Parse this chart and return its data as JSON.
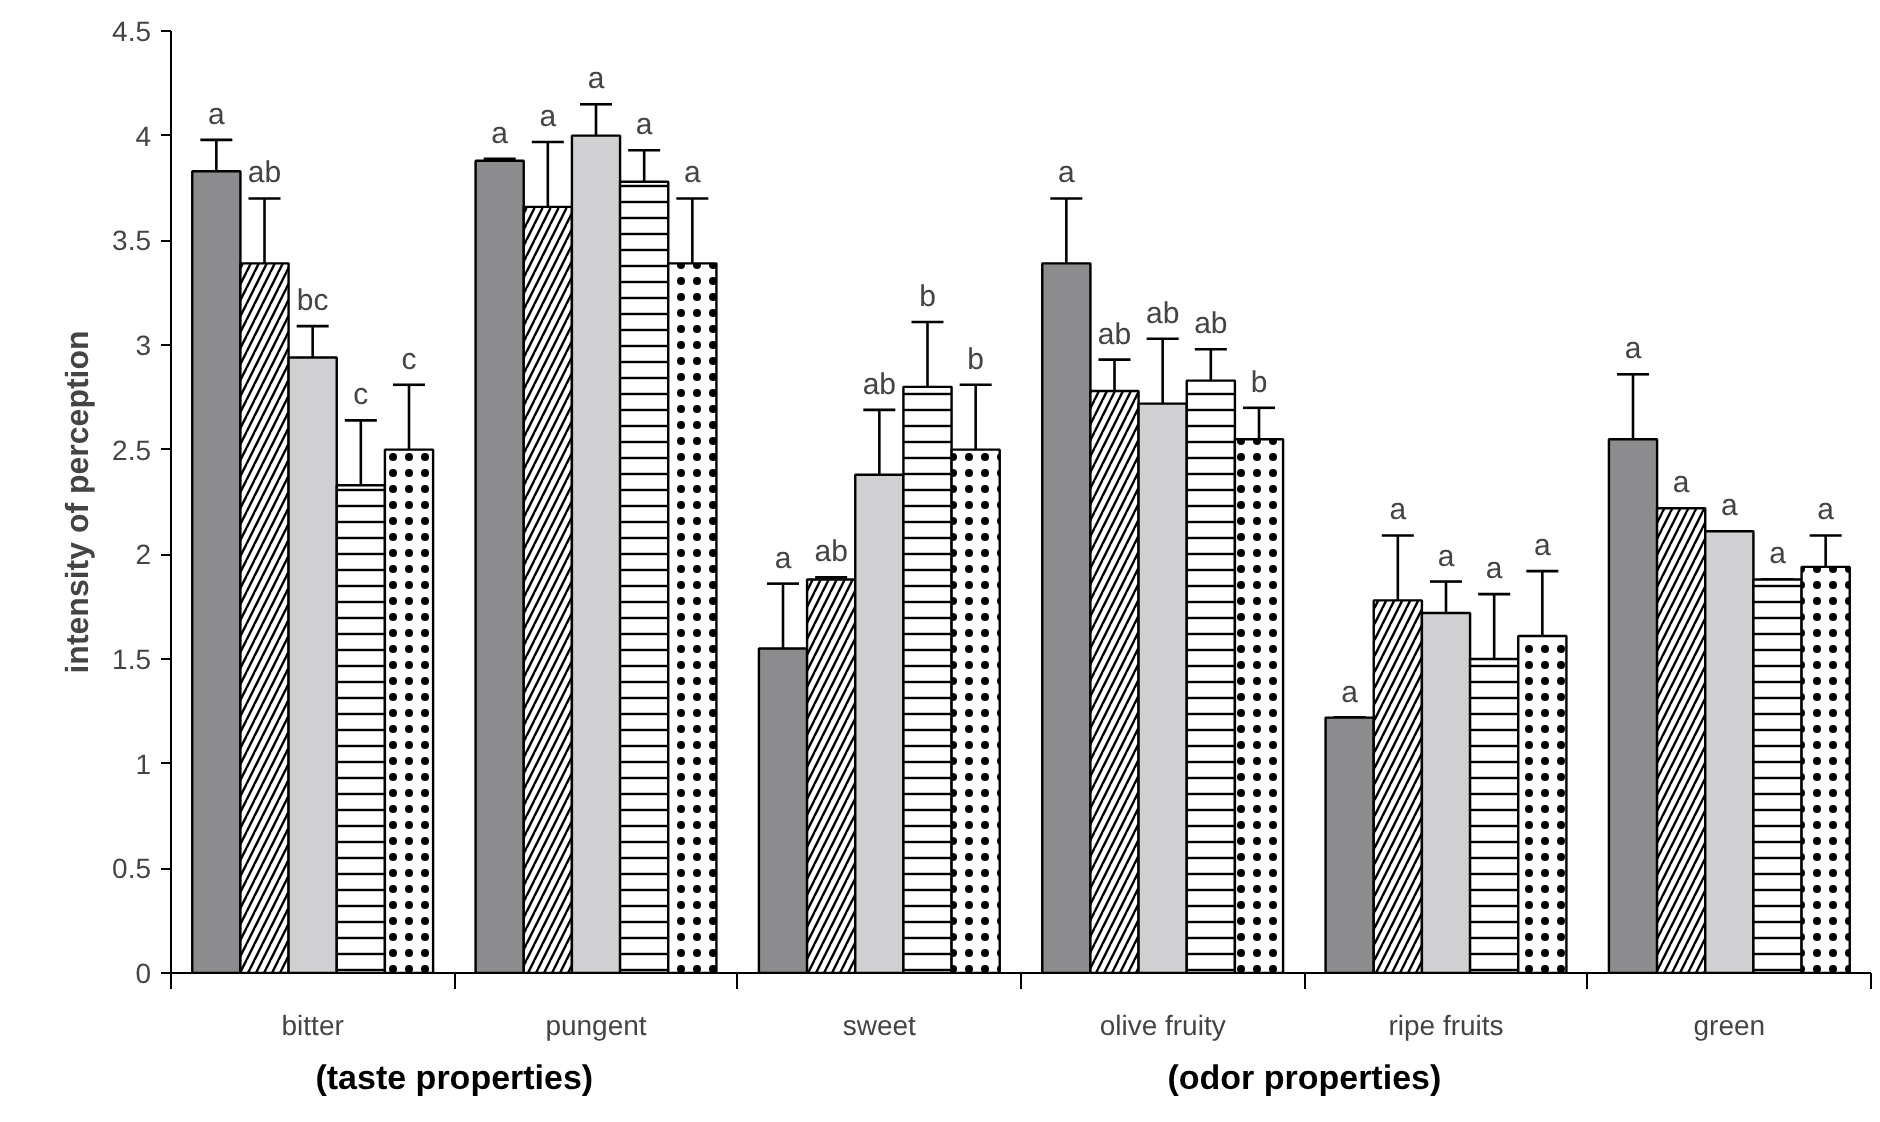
{
  "chart_data": {
    "type": "bar",
    "ylabel": "intensity of perception",
    "categories": [
      "bitter",
      "pungent",
      "sweet",
      "olive fruity",
      "ripe fruits",
      "green"
    ],
    "series": [
      {
        "color": "#8c8c8e",
        "values": [
          3.83,
          3.88,
          1.55,
          3.39,
          1.22,
          2.55
        ],
        "errors": [
          0.15,
          0.01,
          0.31,
          0.31,
          0,
          0.31
        ],
        "value_labels": [
          "a",
          "a",
          "a",
          "a",
          "a",
          "a"
        ]
      },
      {
        "color": "#ffffff",
        "values": [
          3.39,
          3.66,
          1.88,
          2.78,
          1.78,
          2.22
        ],
        "errors": [
          0.31,
          0.31,
          0.01,
          0.15,
          0.31,
          0
        ],
        "value_labels": [
          "ab",
          "a",
          "ab",
          "ab",
          "a",
          "a"
        ]
      },
      {
        "color": "#d0d0d2",
        "values": [
          2.94,
          4.0,
          2.38,
          2.72,
          1.72,
          2.11
        ],
        "errors": [
          0.15,
          0.15,
          0.31,
          0.31,
          0.15,
          0
        ],
        "value_labels": [
          "bc",
          "a",
          "ab",
          "ab",
          "a",
          "a"
        ]
      },
      {
        "color": "#ffffff",
        "values": [
          2.33,
          3.78,
          2.8,
          2.83,
          1.5,
          1.88
        ],
        "errors": [
          0.31,
          0.15,
          0.31,
          0.15,
          0.31,
          0
        ],
        "value_labels": [
          "c",
          "a",
          "b",
          "ab",
          "a",
          "a"
        ]
      },
      {
        "color": "#ffffff",
        "values": [
          2.5,
          3.39,
          2.5,
          2.55,
          1.61,
          1.94
        ],
        "errors": [
          0.31,
          0.31,
          0.31,
          0.15,
          0.31,
          0.15
        ],
        "value_labels": [
          "c",
          "a",
          "b",
          "b",
          "a",
          "a"
        ]
      }
    ],
    "ylim": [
      0,
      4.5
    ],
    "yticks": [
      0,
      0.5,
      1,
      1.5,
      2,
      2.5,
      3,
      3.5,
      4,
      4.5
    ],
    "annotations": [
      "(taste properties)",
      "(odor properties)"
    ],
    "grid": false
  }
}
